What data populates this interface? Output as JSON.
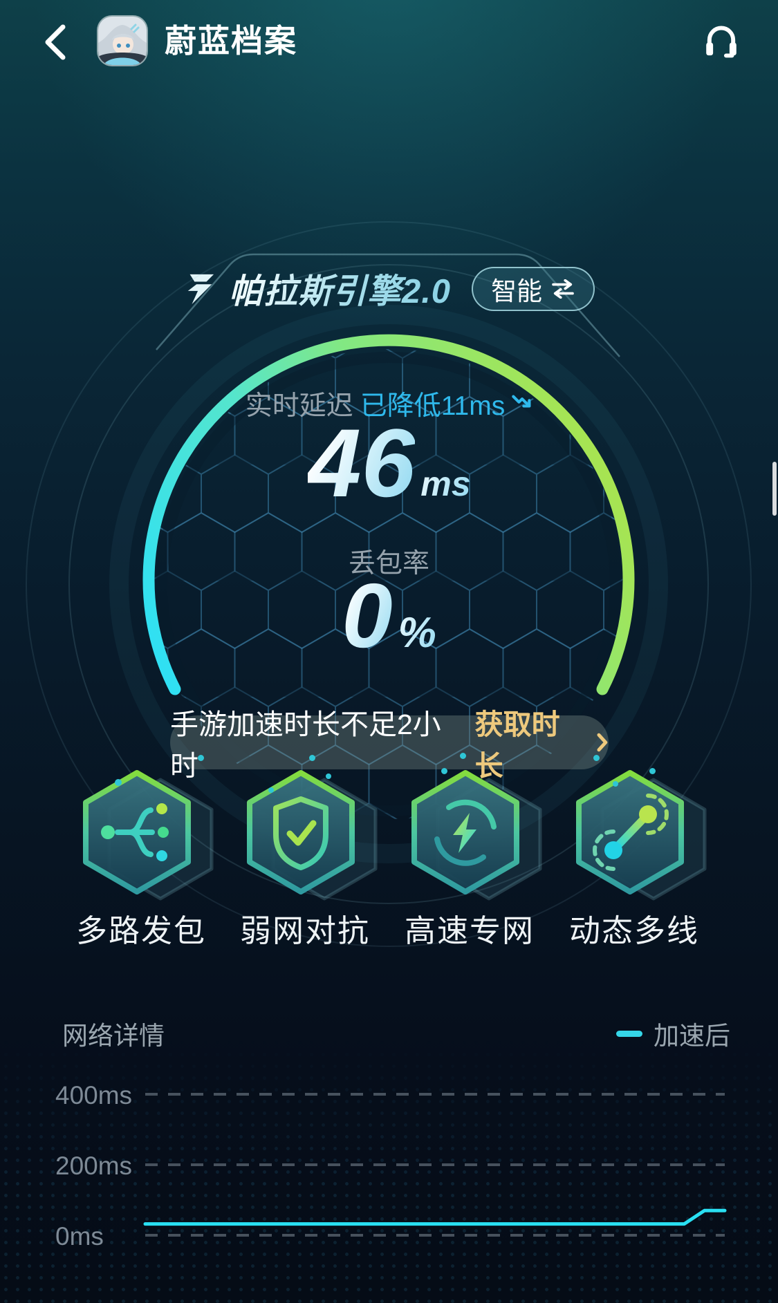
{
  "header": {
    "title": "蔚蓝档案",
    "back_icon": "chevron-left",
    "support_icon": "headset"
  },
  "engine": {
    "name": "帕拉斯引擎2.0",
    "flash_icon": "flash-icon",
    "mode_label": "智能",
    "mode_icon": "swap-arrows"
  },
  "gauge": {
    "latency_label": "实时延迟",
    "latency_reduced": "已降低11ms",
    "latency_value": "46",
    "latency_unit": "ms",
    "packet_loss_label": "丢包率",
    "packet_loss_value": "0",
    "packet_loss_unit": "%"
  },
  "banner": {
    "text": "手游加速时长不足2小时",
    "action": "获取时长",
    "chevron_icon": "chevron-right"
  },
  "features": [
    {
      "label": "多路发包",
      "icon": "multipath-icon"
    },
    {
      "label": "弱网对抗",
      "icon": "shield-check-icon"
    },
    {
      "label": "高速专网",
      "icon": "speed-bolt-icon"
    },
    {
      "label": "动态多线",
      "icon": "dynamic-line-icon"
    }
  ],
  "network": {
    "title": "网络详情",
    "legend": {
      "label": "加速后",
      "color": "#35d6e8"
    }
  },
  "chart_data": {
    "type": "line",
    "title": "网络详情",
    "legend": [
      "加速后"
    ],
    "legend_position": "top-right",
    "ytick_labels": [
      "400ms",
      "200ms",
      "0ms"
    ],
    "ylim": [
      0,
      450
    ],
    "grid": "horizontal-dashed",
    "series": [
      {
        "name": "加速后",
        "color": "#29dff2",
        "x_percent": [
          0,
          93,
          96.5,
          100
        ],
        "y_ms": [
          32,
          32,
          70,
          70
        ]
      }
    ]
  },
  "colors": {
    "accent_cyan": "#2fe0f4",
    "accent_green": "#a9e44f",
    "info_blue": "#2fb9ec",
    "gold": "#eec97d"
  }
}
